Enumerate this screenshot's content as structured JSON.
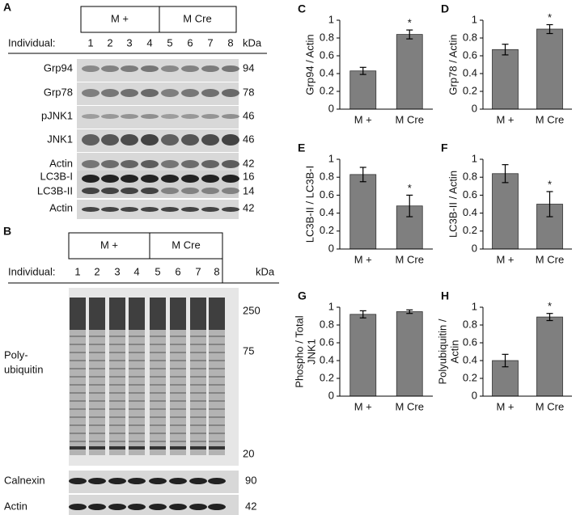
{
  "blot_a": {
    "label": "A",
    "groups": [
      "M +",
      "M Cre"
    ],
    "individual_label": "Individual:",
    "lanes": [
      "1",
      "2",
      "3",
      "4",
      "5",
      "6",
      "7",
      "8"
    ],
    "kda_label": "kDa",
    "rows": [
      {
        "name": "Grp94",
        "kda": 94
      },
      {
        "name": "Grp78",
        "kda": 78
      },
      {
        "name": "pJNK1",
        "kda": 46
      },
      {
        "name": "JNK1",
        "kda": 46
      },
      {
        "name": "Actin",
        "kda": 42
      },
      {
        "name": "LC3B-I",
        "kda": 16
      },
      {
        "name": "LC3B-II",
        "kda": 14
      },
      {
        "name": "Actin",
        "kda": 42
      }
    ]
  },
  "blot_b": {
    "label": "B",
    "groups": [
      "M +",
      "M Cre"
    ],
    "individual_label": "Individual:",
    "lanes": [
      "1",
      "2",
      "3",
      "4",
      "5",
      "6",
      "7",
      "8"
    ],
    "kda_label": "kDa",
    "main_label": [
      "Poly-",
      "ubiquitin"
    ],
    "markers": [
      250,
      75,
      20
    ],
    "rows": [
      {
        "name": "Calnexin",
        "kda": 90
      },
      {
        "name": "Actin",
        "kda": 42
      }
    ]
  },
  "chart_data": [
    {
      "type": "bar",
      "label": "C",
      "ylabel": [
        "Grp94 / Actin"
      ],
      "categories": [
        "M +",
        "M Cre"
      ],
      "values": [
        0.43,
        0.84
      ],
      "errors": [
        0.04,
        0.05
      ],
      "color": "#7f7f7f",
      "ylim": [
        0,
        1
      ],
      "yticks": [
        0,
        0.2,
        0.4,
        0.6,
        0.8,
        1
      ],
      "annotations": [
        {
          "text": "*",
          "category": "M Cre"
        }
      ]
    },
    {
      "type": "bar",
      "label": "D",
      "ylabel": [
        "Grp78 / Actin"
      ],
      "categories": [
        "M +",
        "M Cre"
      ],
      "values": [
        0.67,
        0.9
      ],
      "errors": [
        0.06,
        0.05
      ],
      "color": "#7f7f7f",
      "ylim": [
        0,
        1
      ],
      "yticks": [
        0,
        0.2,
        0.4,
        0.6,
        0.8,
        1
      ],
      "annotations": [
        {
          "text": "*",
          "category": "M Cre"
        }
      ]
    },
    {
      "type": "bar",
      "label": "E",
      "ylabel": [
        "LC3B-II / LC3B-I"
      ],
      "categories": [
        "M +",
        "M Cre"
      ],
      "values": [
        0.83,
        0.48
      ],
      "errors": [
        0.08,
        0.12
      ],
      "color": "#7f7f7f",
      "ylim": [
        0,
        1
      ],
      "yticks": [
        0,
        0.2,
        0.4,
        0.6,
        0.8,
        1
      ],
      "annotations": [
        {
          "text": "*",
          "category": "M Cre"
        }
      ]
    },
    {
      "type": "bar",
      "label": "F",
      "ylabel": [
        "LC3B-II / Actin"
      ],
      "categories": [
        "M +",
        "M Cre"
      ],
      "values": [
        0.84,
        0.5
      ],
      "errors": [
        0.1,
        0.14
      ],
      "color": "#7f7f7f",
      "ylim": [
        0,
        1
      ],
      "yticks": [
        0,
        0.2,
        0.4,
        0.6,
        0.8,
        1
      ],
      "annotations": [
        {
          "text": "*",
          "category": "M Cre"
        }
      ]
    },
    {
      "type": "bar",
      "label": "G",
      "ylabel": [
        "Phospho / Total",
        "JNK1"
      ],
      "categories": [
        "M +",
        "M Cre"
      ],
      "values": [
        0.92,
        0.95
      ],
      "errors": [
        0.04,
        0.02
      ],
      "color": "#7f7f7f",
      "ylim": [
        0,
        1
      ],
      "yticks": [
        0,
        0.2,
        0.4,
        0.6,
        0.8,
        1
      ],
      "annotations": []
    },
    {
      "type": "bar",
      "label": "H",
      "ylabel": [
        "Polyubiquitin /",
        "Actin"
      ],
      "categories": [
        "M +",
        "M Cre"
      ],
      "values": [
        0.4,
        0.89
      ],
      "errors": [
        0.07,
        0.04
      ],
      "color": "#7f7f7f",
      "ylim": [
        0,
        1
      ],
      "yticks": [
        0,
        0.2,
        0.4,
        0.6,
        0.8,
        1
      ],
      "annotations": [
        {
          "text": "*",
          "category": "M Cre"
        }
      ]
    }
  ]
}
